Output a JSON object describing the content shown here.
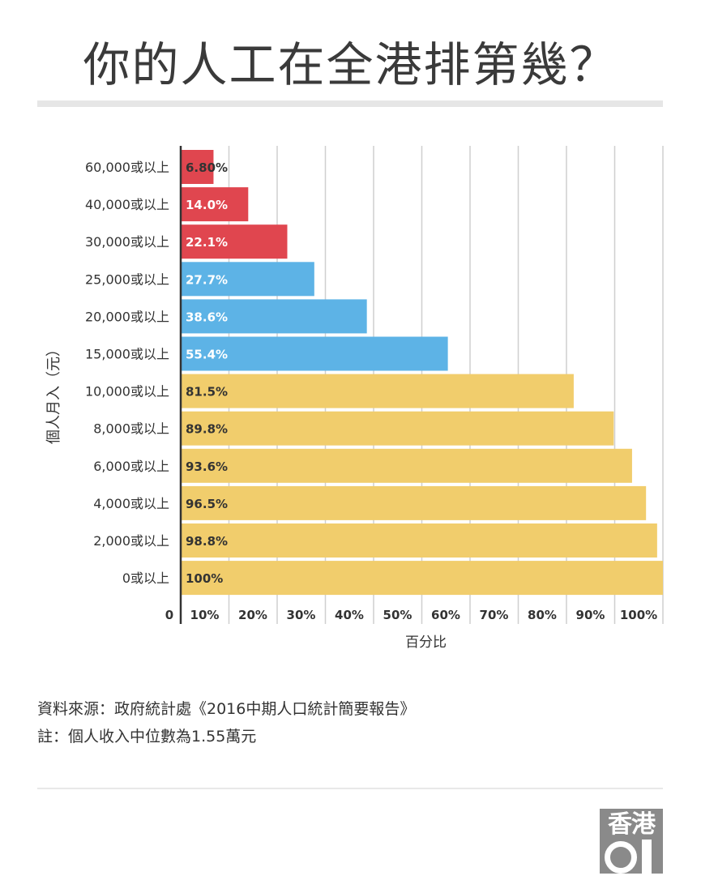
{
  "title": "你的人工在全港排第幾？",
  "chart_data": {
    "type": "bar",
    "orientation": "horizontal",
    "categories": [
      "60,000或以上",
      "40,000或以上",
      "30,000或以上",
      "25,000或以上",
      "20,000或以上",
      "15,000或以上",
      "10,000或以上",
      "8,000或以上",
      "6,000或以上",
      "4,000或以上",
      "2,000或以上",
      "0或以上"
    ],
    "values": [
      6.8,
      14.0,
      22.1,
      27.7,
      38.6,
      55.4,
      81.5,
      89.8,
      93.6,
      96.5,
      98.8,
      100
    ],
    "value_labels": [
      "6.80%",
      "14.0%",
      "22.1%",
      "27.7%",
      "38.6%",
      "55.4%",
      "81.5%",
      "89.8%",
      "93.6%",
      "96.5%",
      "98.8%",
      "100%"
    ],
    "bar_colors": [
      "#e0464f",
      "#e0464f",
      "#e0464f",
      "#5db3e6",
      "#5db3e6",
      "#5db3e6",
      "#f1cd6c",
      "#f1cd6c",
      "#f1cd6c",
      "#f1cd6c",
      "#f1cd6c",
      "#f1cd6c"
    ],
    "xlim": [
      0,
      100
    ],
    "x_ticks": [
      0,
      10,
      20,
      30,
      40,
      50,
      60,
      70,
      80,
      90,
      100
    ],
    "x_tick_labels": [
      "0",
      "10%",
      "20%",
      "30%",
      "40%",
      "50%",
      "60%",
      "70%",
      "80%",
      "90%",
      "100%"
    ],
    "xlabel": "百分比",
    "ylabel": "個人月入（元）",
    "grid": true,
    "legend": "none"
  },
  "source": {
    "line1": "資料來源：政府統計處《2016中期人口統計簡要報告》",
    "line2": "註：個人收入中位數為1.55萬元"
  },
  "logo": {
    "text": "香港",
    "number": "01"
  },
  "colors": {
    "red": "#e0464f",
    "blue": "#5db3e6",
    "yellow": "#f1cd6c",
    "grid": "#cfcfcf",
    "axis": "#333333"
  }
}
